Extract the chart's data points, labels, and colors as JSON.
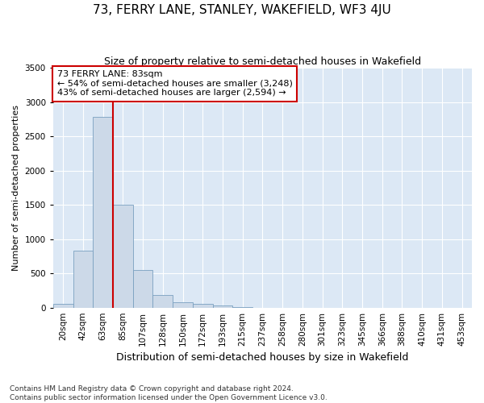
{
  "title": "73, FERRY LANE, STANLEY, WAKEFIELD, WF3 4JU",
  "subtitle": "Size of property relative to semi-detached houses in Wakefield",
  "xlabel": "Distribution of semi-detached houses by size in Wakefield",
  "ylabel": "Number of semi-detached properties",
  "footnote1": "Contains HM Land Registry data © Crown copyright and database right 2024.",
  "footnote2": "Contains public sector information licensed under the Open Government Licence v3.0.",
  "annotation_title": "73 FERRY LANE: 83sqm",
  "annotation_line1": "← 54% of semi-detached houses are smaller (3,248)",
  "annotation_line2": "43% of semi-detached houses are larger (2,594) →",
  "categories": [
    "20sqm",
    "42sqm",
    "63sqm",
    "85sqm",
    "107sqm",
    "128sqm",
    "150sqm",
    "172sqm",
    "193sqm",
    "215sqm",
    "237sqm",
    "258sqm",
    "280sqm",
    "301sqm",
    "323sqm",
    "345sqm",
    "366sqm",
    "388sqm",
    "410sqm",
    "431sqm",
    "453sqm"
  ],
  "values": [
    55,
    830,
    2780,
    1500,
    550,
    185,
    75,
    50,
    35,
    5,
    2,
    0,
    0,
    0,
    0,
    0,
    0,
    0,
    0,
    0,
    0
  ],
  "bar_color": "#ccd9e8",
  "bar_edge_color": "#7aa0c0",
  "vline_color": "#cc0000",
  "vline_x": 3,
  "annotation_box_facecolor": "#ffffff",
  "annotation_box_edgecolor": "#cc0000",
  "ylim": [
    0,
    3500
  ],
  "yticks": [
    0,
    500,
    1000,
    1500,
    2000,
    2500,
    3000,
    3500
  ],
  "plot_bg_color": "#dce8f5",
  "grid_color": "#ffffff",
  "fig_bg_color": "#ffffff",
  "title_fontsize": 11,
  "subtitle_fontsize": 9,
  "xlabel_fontsize": 9,
  "ylabel_fontsize": 8,
  "tick_fontsize": 7.5,
  "annotation_fontsize": 8,
  "footnote_fontsize": 6.5
}
